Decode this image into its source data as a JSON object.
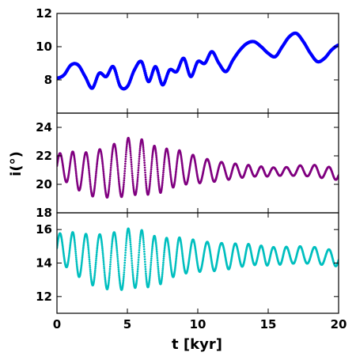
{
  "chart_data": {
    "type": "scatter",
    "xlabel": "t [kyr]",
    "ylabel": "i(°)",
    "x_ticks": [
      0,
      5,
      10,
      15,
      20
    ],
    "x_tick_labels": [
      "0",
      "5",
      "10",
      "15",
      "20"
    ],
    "xlim": [
      0,
      20
    ],
    "grid": false,
    "panels": [
      {
        "ylim": [
          6,
          12
        ],
        "yticks": [
          8,
          10,
          12
        ],
        "ytick_labels": [
          "8",
          "10",
          "12"
        ],
        "color": "#0000ff",
        "x": [
          0.0,
          0.5,
          1.0,
          1.5,
          2.0,
          2.5,
          3.0,
          3.5,
          4.0,
          4.5,
          5.0,
          5.5,
          6.0,
          6.5,
          7.0,
          7.5,
          8.0,
          8.5,
          9.0,
          9.5,
          10.0,
          10.5,
          11.0,
          11.5,
          12.0,
          12.5,
          13.0,
          13.5,
          14.0,
          14.5,
          15.0,
          15.5,
          16.0,
          16.5,
          17.0,
          17.5,
          18.0,
          18.5,
          19.0,
          19.5,
          20.0
        ],
        "y": [
          8.1,
          8.3,
          8.9,
          8.9,
          8.2,
          7.5,
          8.4,
          8.2,
          8.8,
          7.6,
          7.6,
          8.6,
          9.1,
          7.9,
          8.8,
          7.7,
          8.6,
          8.5,
          9.3,
          8.2,
          9.1,
          9.0,
          9.7,
          9.0,
          8.5,
          9.2,
          9.8,
          10.2,
          10.3,
          10.0,
          9.6,
          9.4,
          10.0,
          10.6,
          10.8,
          10.3,
          9.6,
          9.1,
          9.3,
          9.8,
          10.1
        ]
      },
      {
        "ylim": [
          18,
          25
        ],
        "yticks": [
          18,
          20,
          22,
          24
        ],
        "ytick_labels": [
          "18",
          "20",
          "22",
          "24"
        ],
        "color": "#800080",
        "envelope": {
          "t": [
            0,
            2,
            4,
            5,
            6,
            7,
            8,
            10,
            12,
            14,
            16,
            18,
            20
          ],
          "upper": [
            22.2,
            22.4,
            23.0,
            23.3,
            23.2,
            22.9,
            22.6,
            22.0,
            21.6,
            21.3,
            21.2,
            21.4,
            21.2
          ],
          "lower": [
            20.4,
            19.2,
            19.0,
            18.9,
            19.0,
            19.3,
            19.6,
            20.0,
            20.3,
            20.5,
            20.6,
            20.5,
            20.3
          ]
        }
      },
      {
        "ylim": [
          11,
          17
        ],
        "yticks": [
          12,
          14,
          16
        ],
        "ytick_labels": [
          "12",
          "14",
          "16"
        ],
        "color": "#00bfbf",
        "envelope": {
          "t": [
            0,
            2,
            4,
            5,
            6,
            7,
            8,
            10,
            12,
            14,
            16,
            18,
            20
          ],
          "upper": [
            15.8,
            15.9,
            16.0,
            16.1,
            16.0,
            15.8,
            15.6,
            15.4,
            15.3,
            15.1,
            15.0,
            15.0,
            14.8
          ],
          "lower": [
            14.0,
            12.8,
            12.3,
            12.2,
            12.3,
            12.6,
            13.0,
            13.4,
            13.6,
            13.8,
            13.9,
            13.9,
            13.8
          ]
        }
      }
    ]
  }
}
